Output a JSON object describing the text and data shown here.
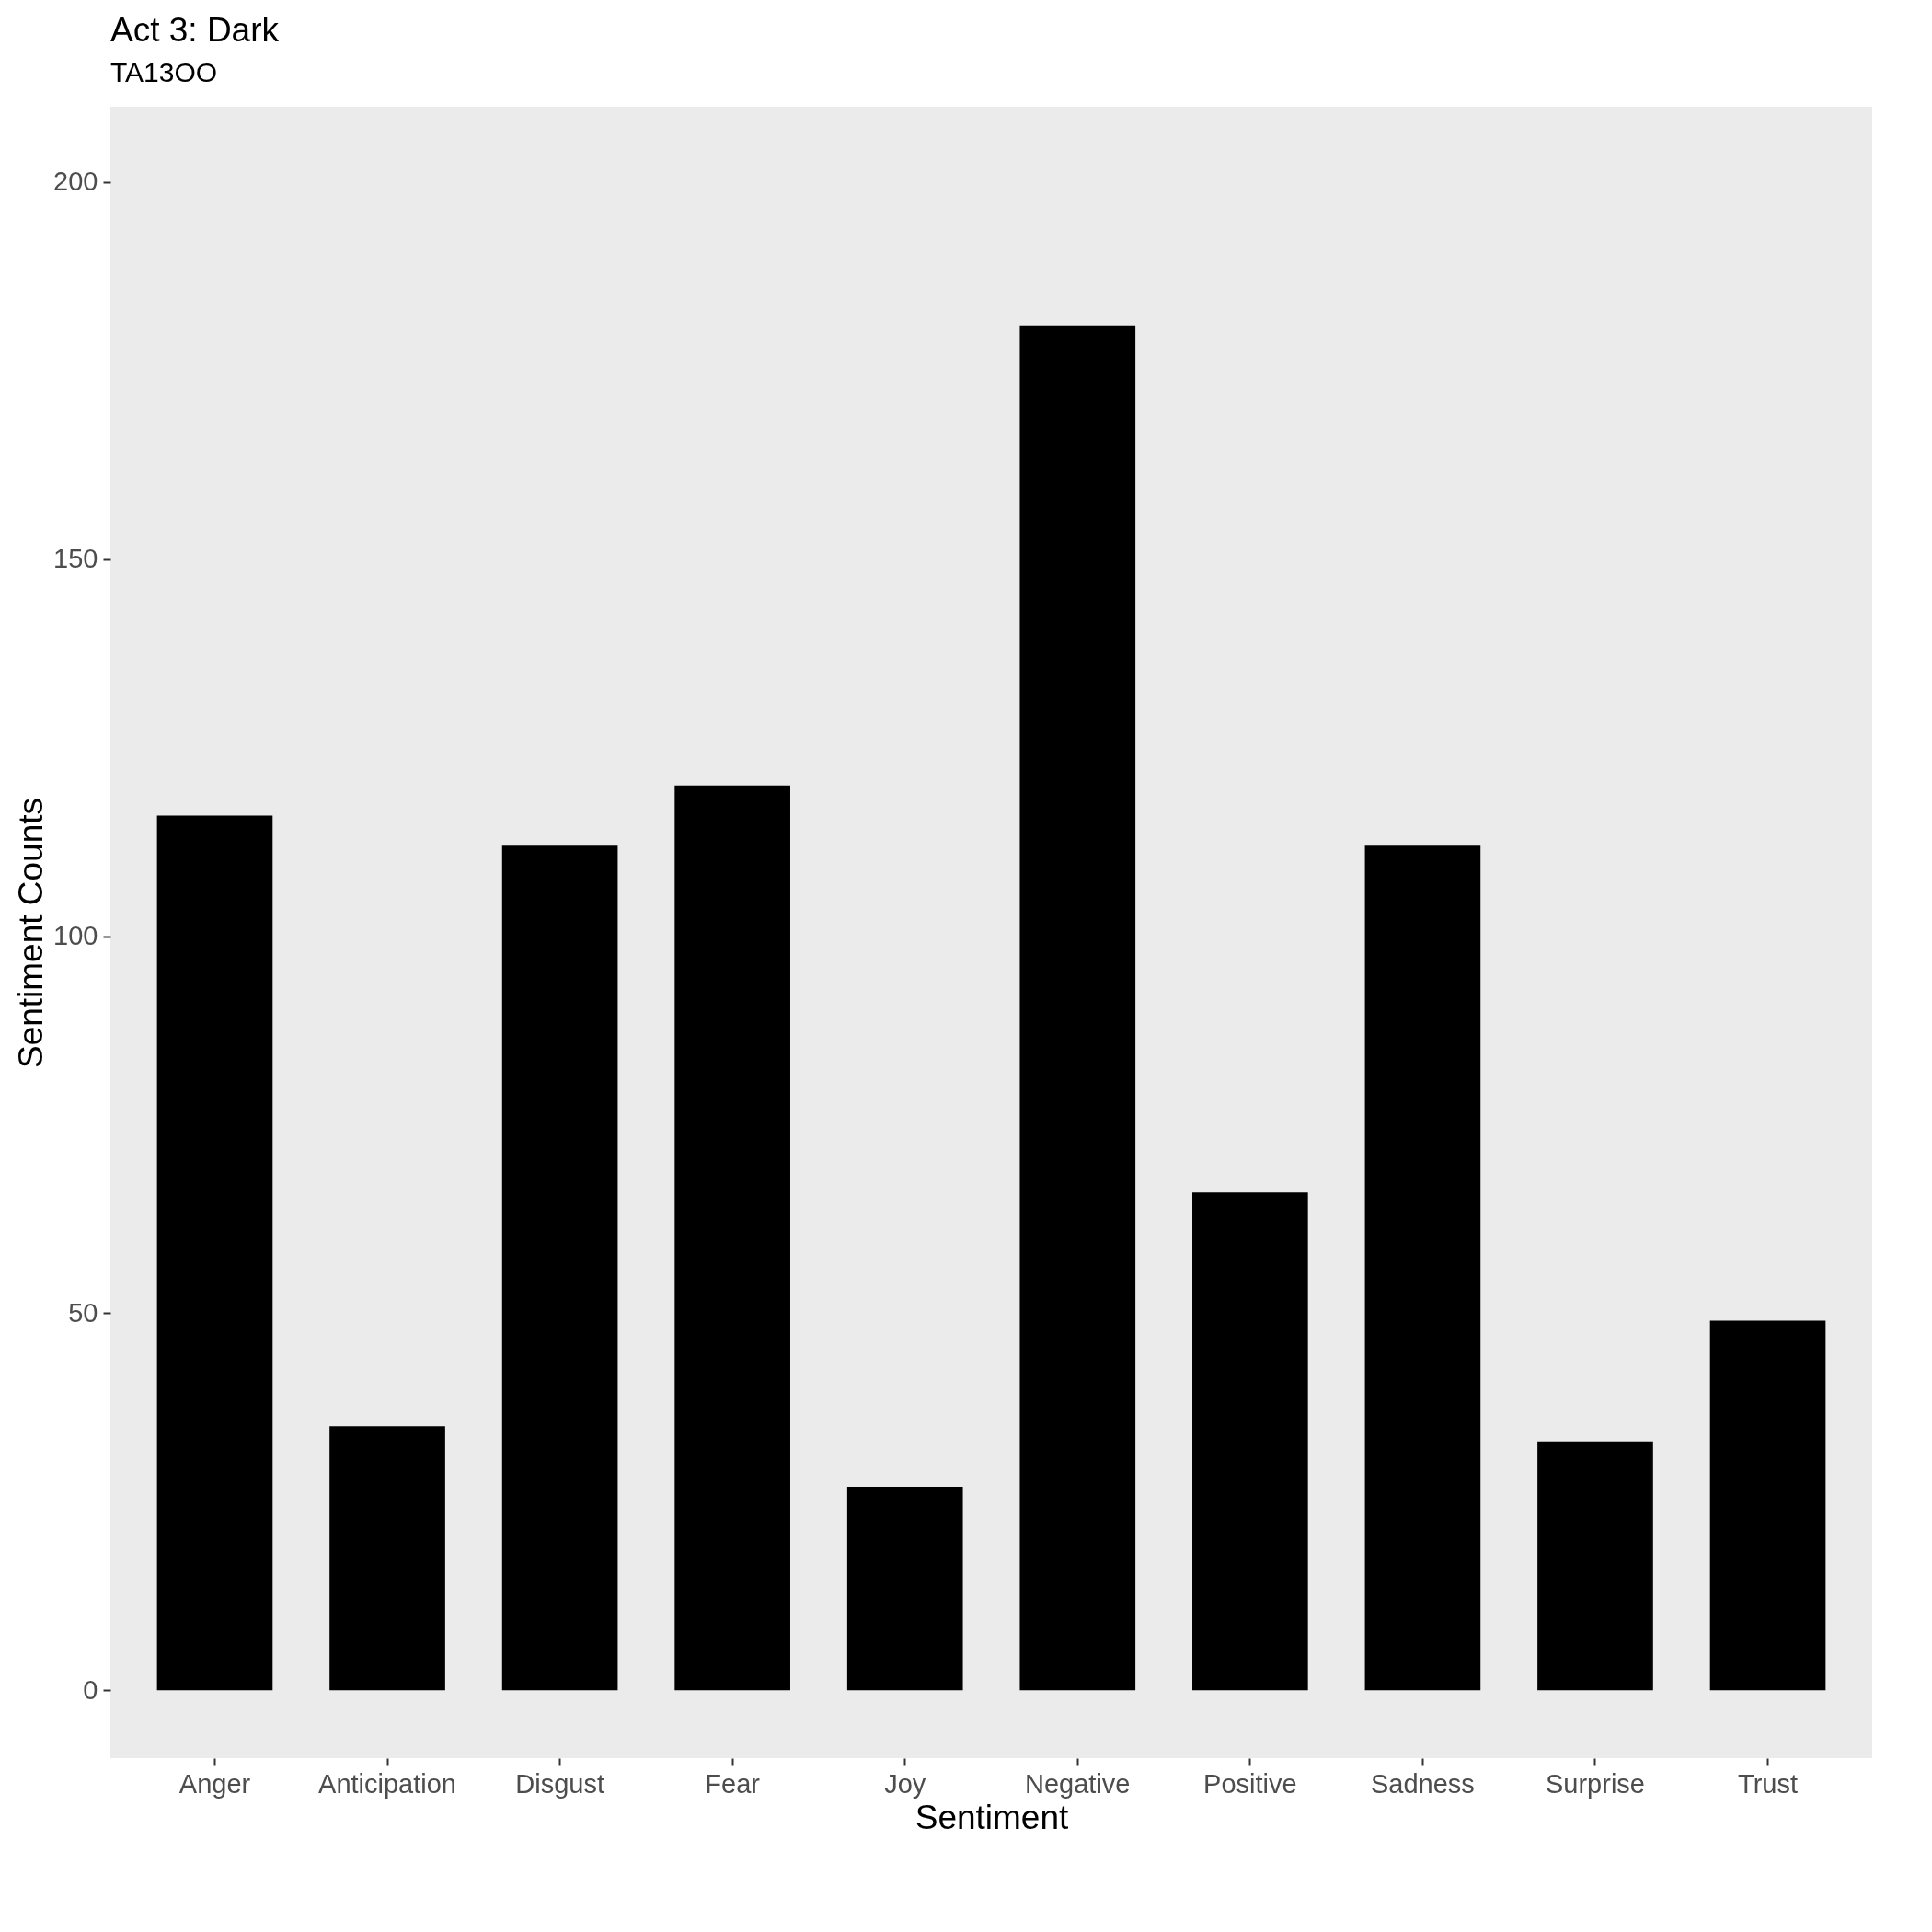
{
  "chart_data": {
    "type": "bar",
    "title": "Act 3: Dark",
    "subtitle": "TA13OO",
    "xlabel": "Sentiment",
    "ylabel": "Sentiment Counts",
    "categories": [
      "Anger",
      "Anticipation",
      "Disgust",
      "Fear",
      "Joy",
      "Negative",
      "Positive",
      "Sadness",
      "Surprise",
      "Trust"
    ],
    "values": [
      116,
      35,
      112,
      120,
      27,
      181,
      66,
      112,
      33,
      49
    ],
    "color": "#000000",
    "ylim": [
      -9,
      210
    ],
    "yticks": [
      0,
      50,
      100,
      150,
      200
    ],
    "grid": false
  }
}
